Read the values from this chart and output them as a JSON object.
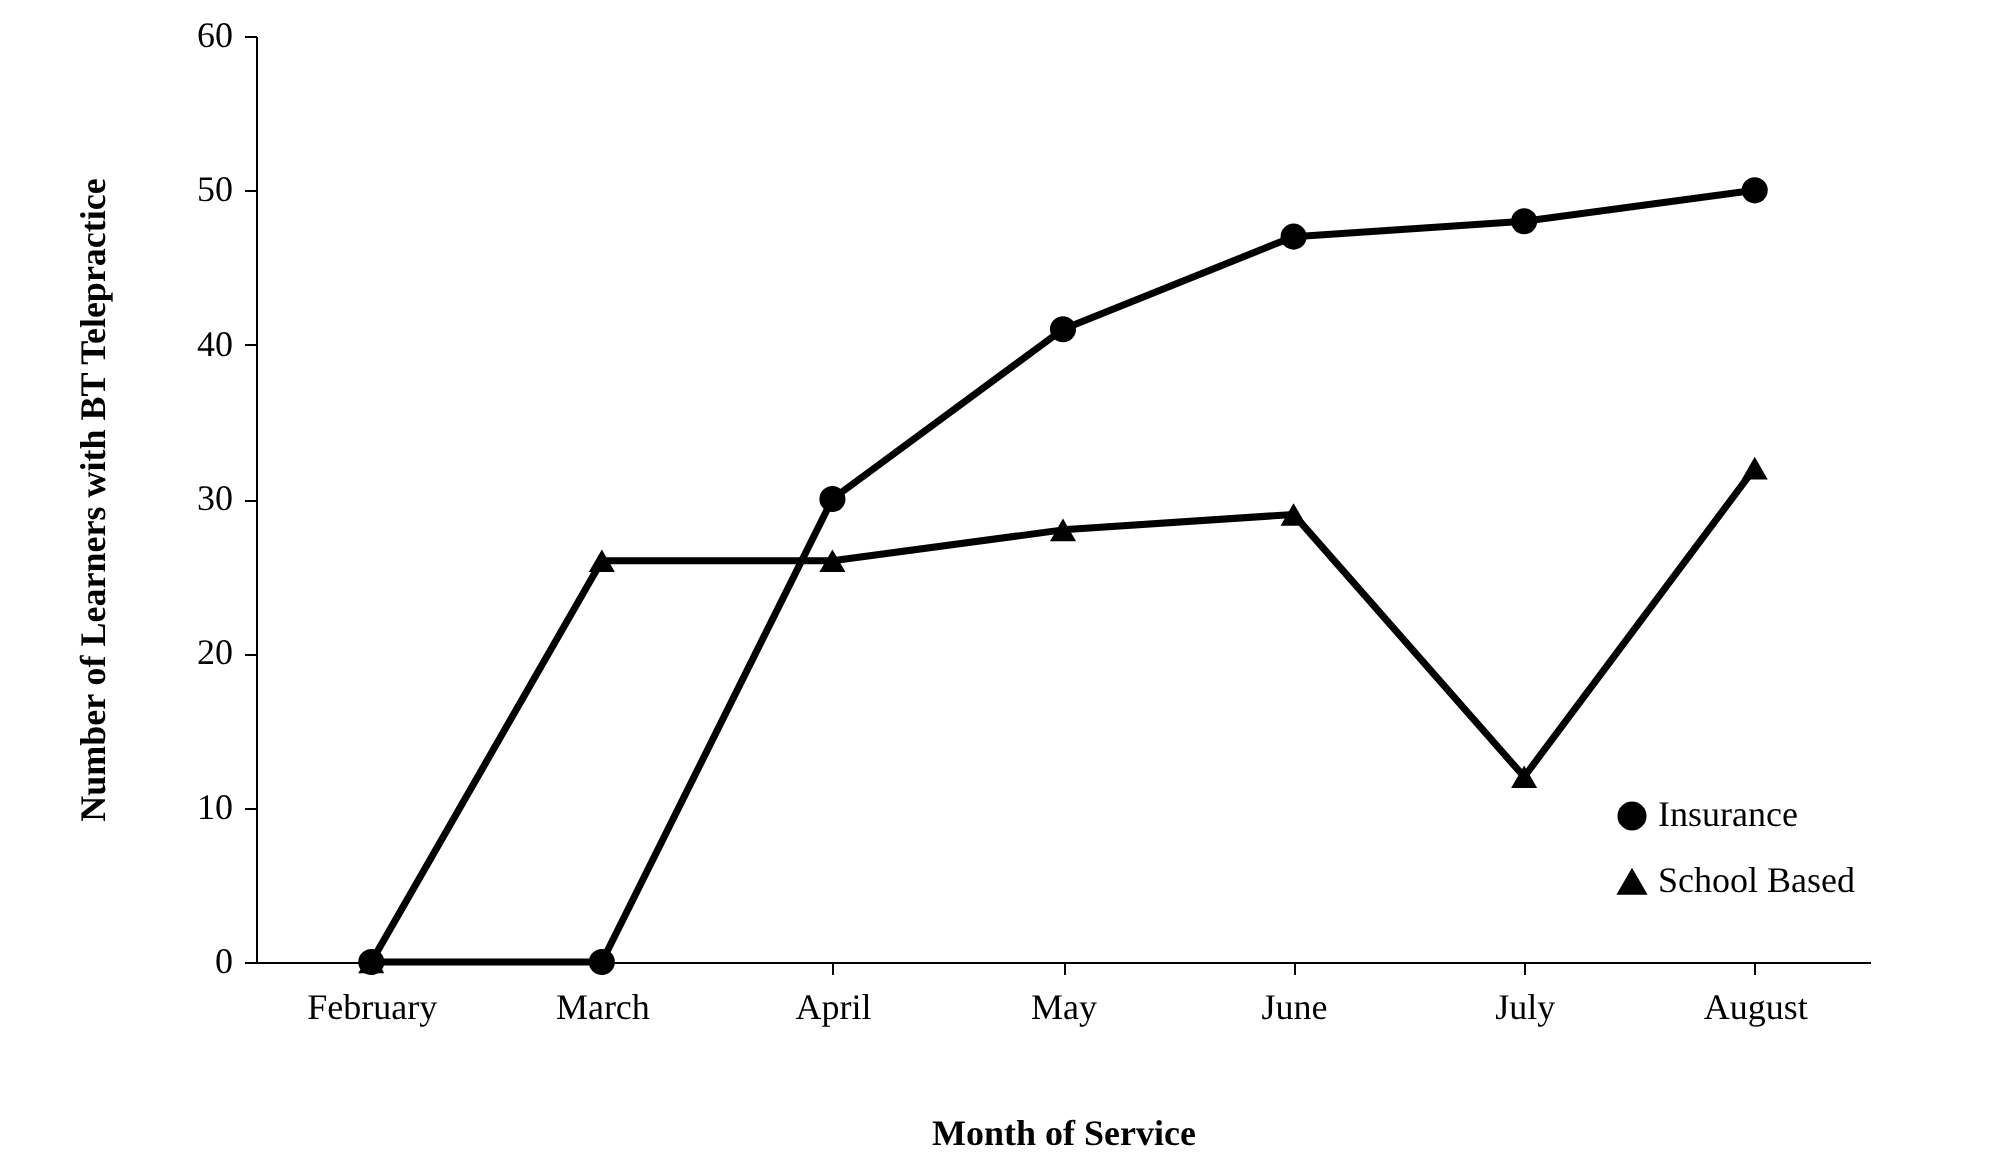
{
  "chart_data": {
    "type": "line",
    "xlabel": "Month of Service",
    "ylabel": "Number of Learners with BT Telepractice",
    "categories": [
      "February",
      "March",
      "April",
      "May",
      "June",
      "July",
      "August"
    ],
    "series": [
      {
        "name": "Insurance",
        "color": "#000000",
        "marker": "circle",
        "values": [
          0,
          0,
          30,
          41,
          47,
          48,
          50
        ]
      },
      {
        "name": "School Based",
        "color": "#000000",
        "marker": "triangle",
        "values": [
          0,
          26,
          26,
          28,
          29,
          12,
          32
        ]
      }
    ],
    "ylim": [
      0,
      60
    ],
    "yticks": [
      0,
      10,
      20,
      30,
      40,
      50,
      60
    ],
    "grid": false,
    "legend": "bottom right",
    "line_style": "solid"
  }
}
